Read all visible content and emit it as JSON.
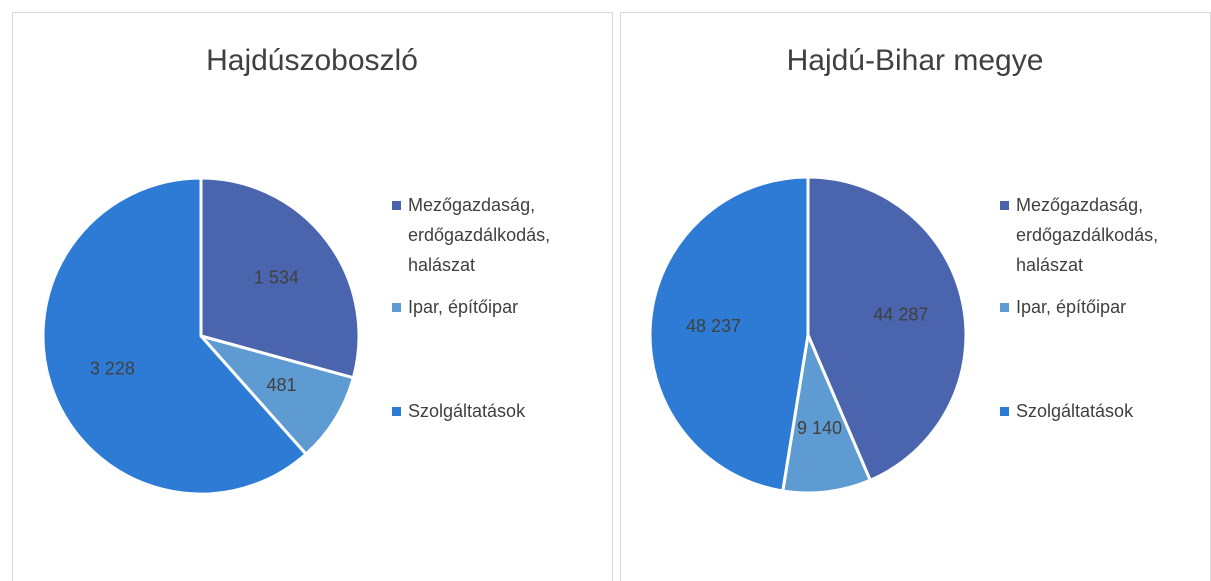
{
  "chart_data": [
    {
      "type": "pie",
      "title": "Hajdúszoboszló",
      "categories": [
        "Mezőgazdaság, erdőgazdálkodás, halászat",
        "Ipar, építőipar",
        "Szolgáltatások"
      ],
      "values": [
        1534,
        481,
        3228
      ],
      "value_labels": [
        "1 534",
        "481",
        "3 228"
      ],
      "colors": [
        "#4a65ad",
        "#5f9bd3",
        "#2e7bd6"
      ],
      "legend": "right"
    },
    {
      "type": "pie",
      "title": "Hajdú-Bihar megye",
      "categories": [
        "Mezőgazdaság, erdőgazdálkodás, halászat",
        "Ipar, építőipar",
        "Szolgáltatások"
      ],
      "values": [
        44287,
        9140,
        48237
      ],
      "value_labels": [
        "44 287",
        "9 140",
        "48 237"
      ],
      "colors": [
        "#4a65ad",
        "#5f9bd3",
        "#2e7bd6"
      ],
      "legend": "right"
    }
  ]
}
